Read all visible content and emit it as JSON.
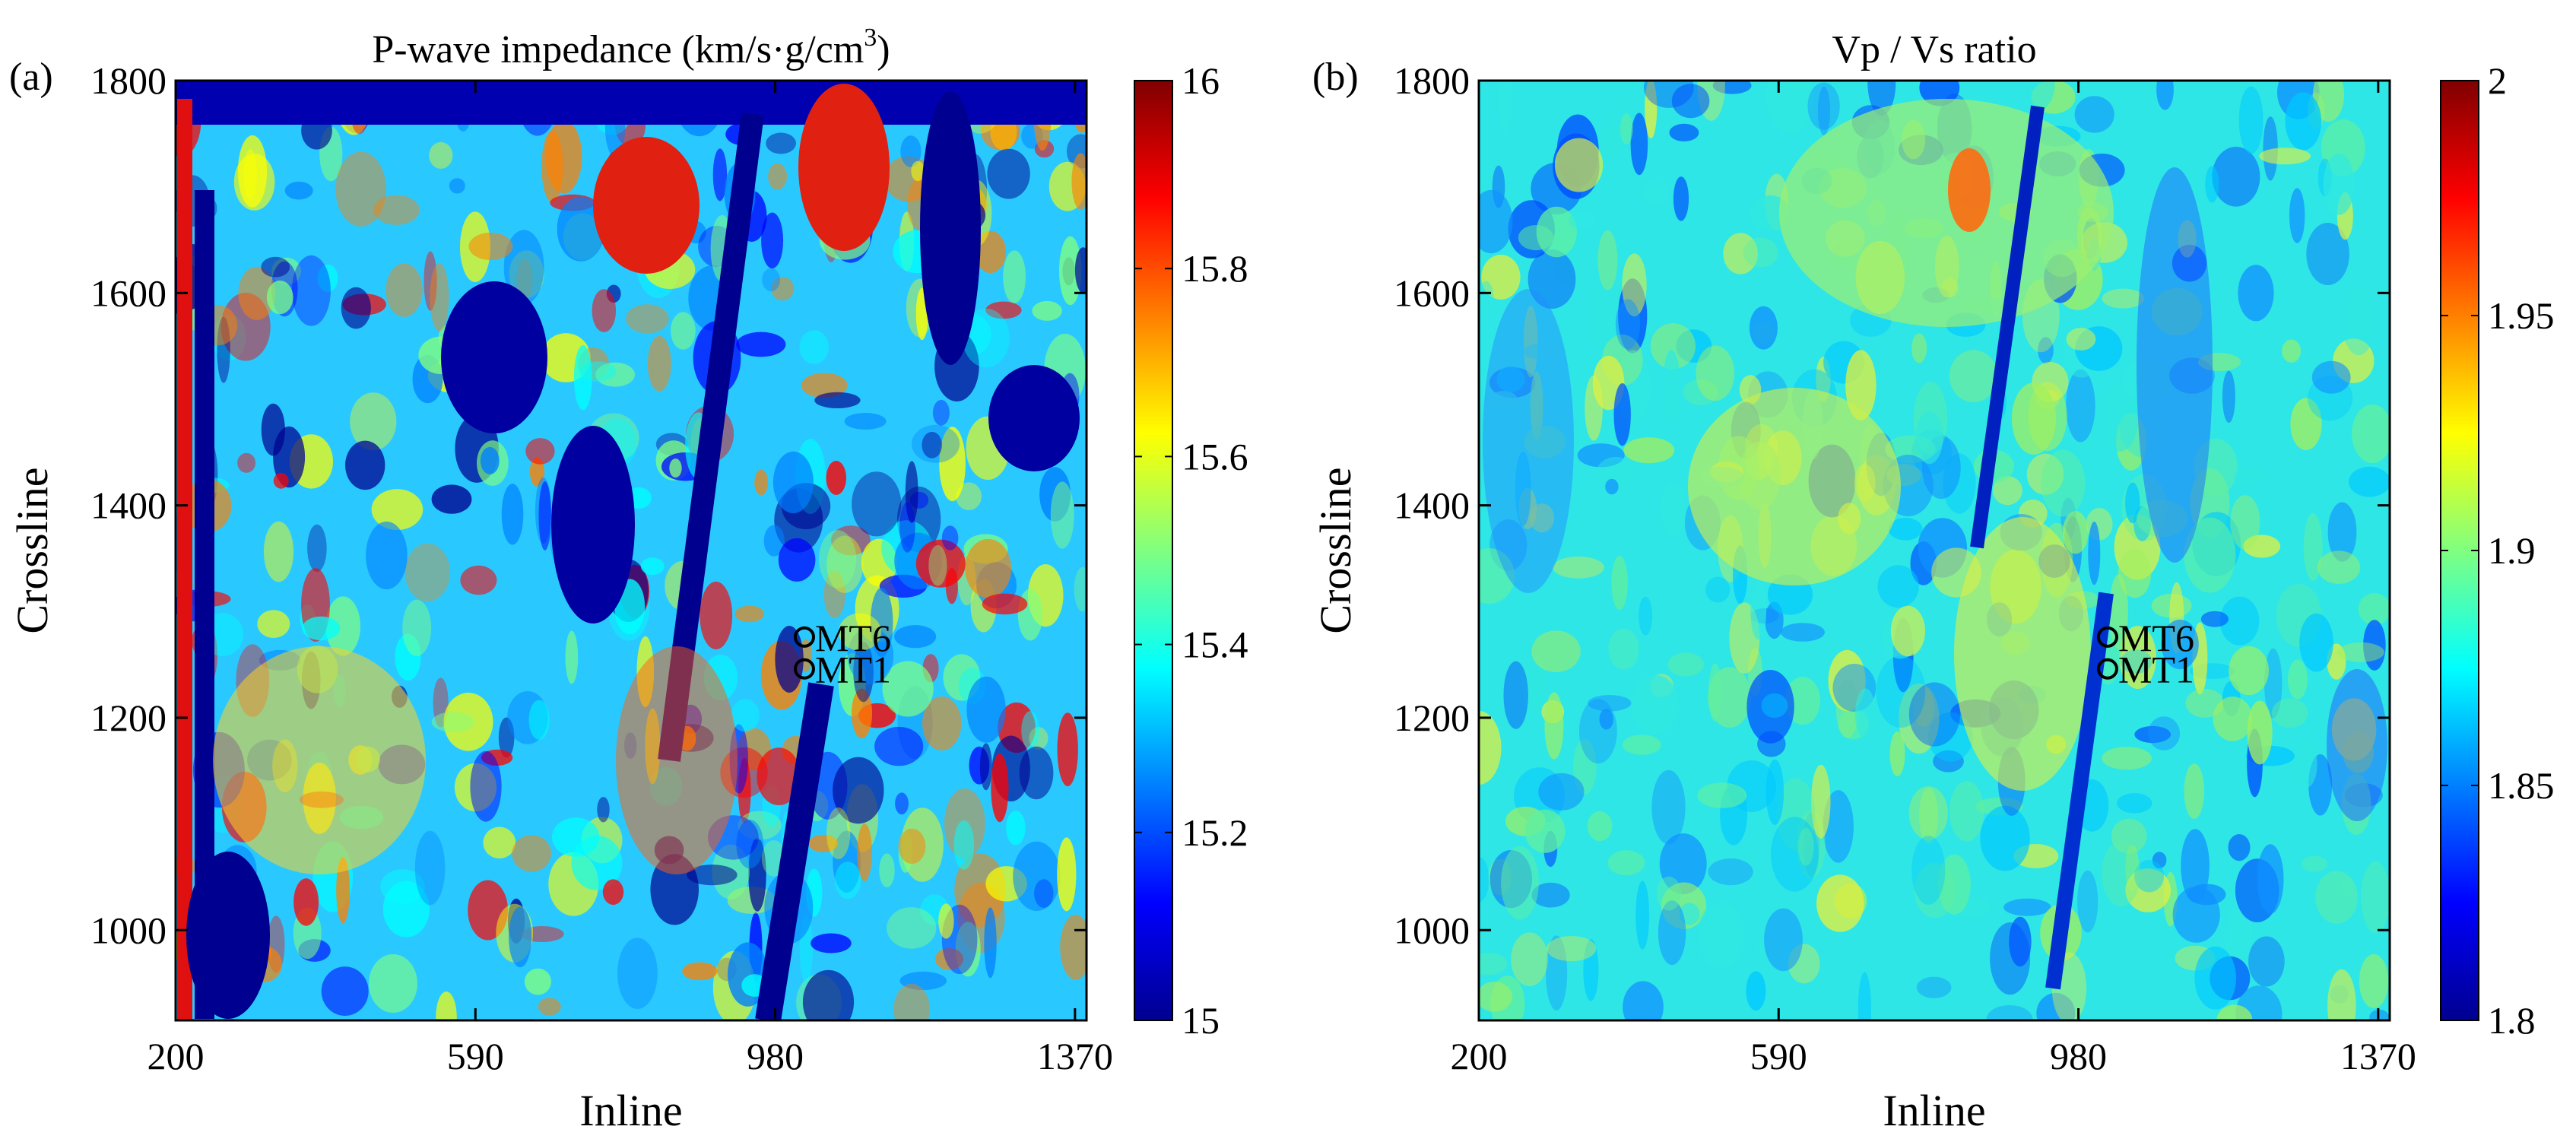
{
  "chart_data": [
    {
      "type": "heatmap",
      "panel_label": "(a)",
      "title": "P-wave impedance (km/s·g/cm",
      "title_sup": "3",
      "title_close": ")",
      "xlabel": "Inline",
      "ylabel": "Crossline",
      "xlim": [
        200,
        1385
      ],
      "ylim": [
        915,
        1800
      ],
      "xticks": [
        200,
        590,
        980,
        1370
      ],
      "yticks": [
        1000,
        1200,
        1400,
        1600,
        1800
      ],
      "colorbar": {
        "min": 15,
        "max": 16,
        "ticks": [
          "15",
          "15.2",
          "15.4",
          "15.6",
          "15.8",
          "16"
        ],
        "colormap": "jet"
      },
      "wells": [
        {
          "name": "MT6",
          "inline": 1018,
          "crossline": 1276
        },
        {
          "name": "MT1",
          "inline": 1018,
          "crossline": 1246
        }
      ]
    },
    {
      "type": "heatmap",
      "panel_label": "(b)",
      "title": "Vp / Vs ratio",
      "xlabel": "Inline",
      "ylabel": "Crossline",
      "xlim": [
        200,
        1385
      ],
      "ylim": [
        915,
        1800
      ],
      "xticks": [
        200,
        590,
        980,
        1370
      ],
      "yticks": [
        1000,
        1200,
        1400,
        1600,
        1800
      ],
      "colorbar": {
        "min": 1.8,
        "max": 2,
        "ticks": [
          "1.8",
          "1.85",
          "1.9",
          "1.95",
          "2"
        ],
        "colormap": "jet"
      },
      "wells": [
        {
          "name": "MT6",
          "inline": 1018,
          "crossline": 1276
        },
        {
          "name": "MT1",
          "inline": 1018,
          "crossline": 1246
        }
      ]
    }
  ],
  "colors": {
    "jet": [
      "#00008f",
      "#0000ff",
      "#0080ff",
      "#00ffff",
      "#80ff80",
      "#ffff00",
      "#ff8000",
      "#ff0000",
      "#800000"
    ],
    "axis": "#000000"
  }
}
